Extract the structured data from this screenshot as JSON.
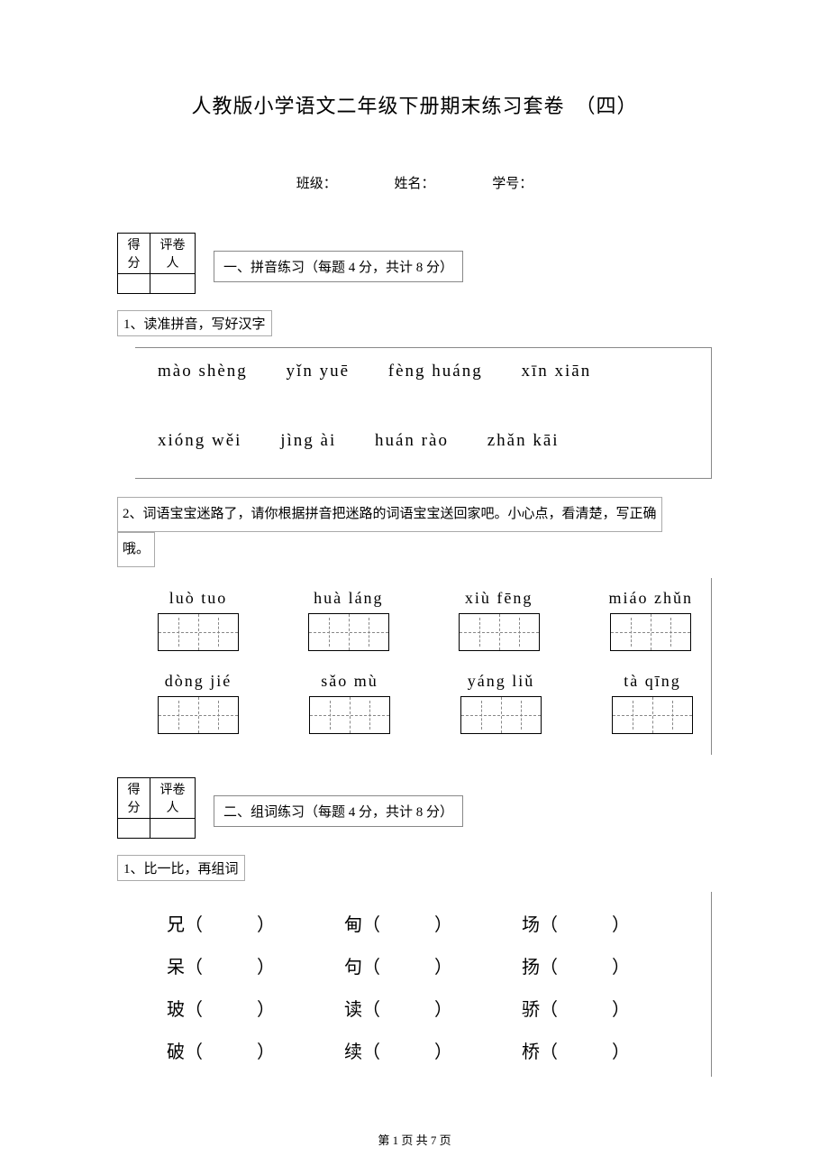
{
  "title": "人教版小学语文二年级下册期末练习套卷　（四）",
  "info": {
    "class": "班级：",
    "name": "姓名：",
    "id": "学号："
  },
  "score_headers": {
    "score": "得分",
    "reviewer": "评卷人"
  },
  "section1": {
    "title": "一、拼音练习（每题 4 分，共计 8 分）",
    "q1": {
      "label": "1、读准拼音，写好汉字",
      "row1": [
        "mào shèng",
        "yǐn yuē",
        "fèng huáng",
        "xīn xiān"
      ],
      "row2": [
        "xióng wěi",
        "jìng ài",
        "huán rào",
        "zhǎn kāi"
      ]
    },
    "q2": {
      "label_part1": "2、词语宝宝迷路了，请你根据拼音把迷路的词语宝宝送回家吧。小心点，看清楚，写正确",
      "label_part2": "哦。",
      "row1": [
        "luò  tuo",
        "huà  láng",
        "xiù  fēng",
        "miáo zhǔn"
      ],
      "row2": [
        "dòng jié",
        "sǎo   mù",
        "yáng  liǔ",
        "tà   qīng"
      ]
    }
  },
  "section2": {
    "title": "二、组词练习（每题 4 分，共计 8 分）",
    "q1": {
      "label": "1、比一比，再组词",
      "rows": [
        [
          "兄（　　　）",
          "甸（　　　）",
          "场（　　　）"
        ],
        [
          "呆（　　　）",
          "句（　　　）",
          "扬（　　　）"
        ],
        [
          "玻（　　　）",
          "读（　　　）",
          "骄（　　　）"
        ],
        [
          "破（　　　）",
          "续（　　　）",
          "桥（　　　）"
        ]
      ]
    }
  },
  "footer": "第 1 页 共 7 页"
}
